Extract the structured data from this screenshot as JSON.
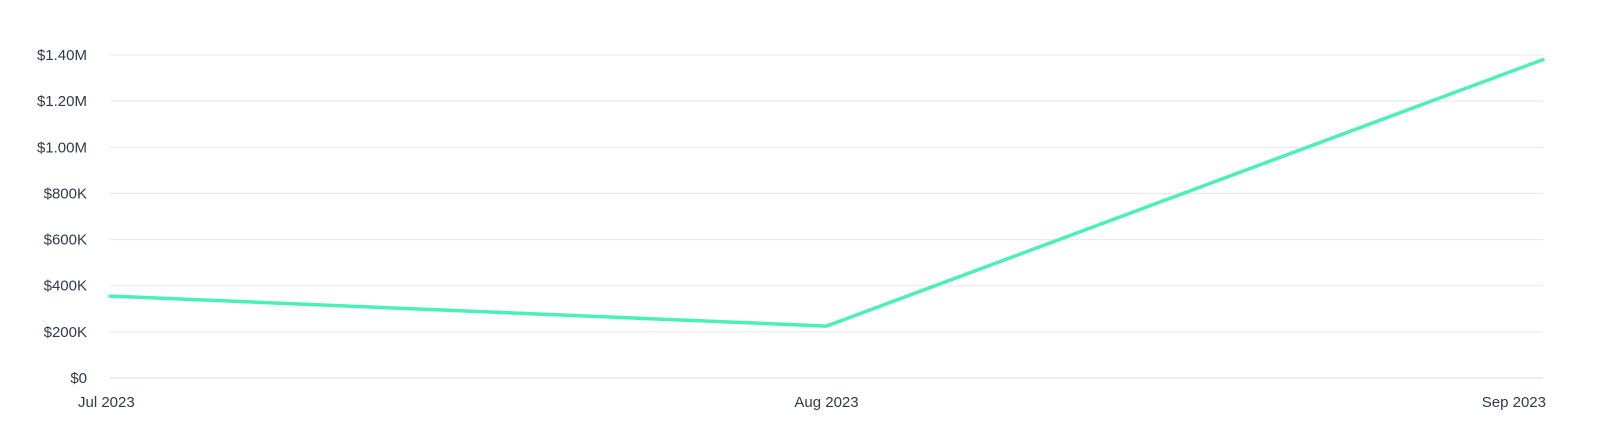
{
  "chart_data": {
    "type": "line",
    "x": [
      "Jul 2023",
      "Aug 2023",
      "Sep 2023"
    ],
    "series": [
      {
        "values": [
          355000,
          225000,
          1380000
        ]
      }
    ],
    "y_ticks": [
      {
        "value": 0,
        "label": "$0"
      },
      {
        "value": 200000,
        "label": "$200K"
      },
      {
        "value": 400000,
        "label": "$400K"
      },
      {
        "value": 600000,
        "label": "$600K"
      },
      {
        "value": 800000,
        "label": "$800K"
      },
      {
        "value": 1000000,
        "label": "$1.00M"
      },
      {
        "value": 1200000,
        "label": "$1.20M"
      },
      {
        "value": 1400000,
        "label": "$1.40M"
      }
    ],
    "ylim": [
      0,
      1400000
    ],
    "grid": true,
    "line_color": "#4af0b7",
    "title": "",
    "xlabel": "",
    "ylabel": ""
  }
}
